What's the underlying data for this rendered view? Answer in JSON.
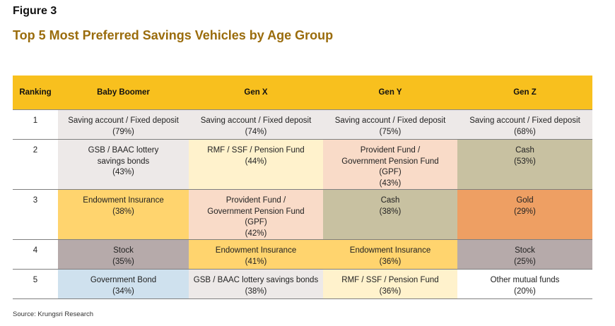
{
  "figure_label": "Figure 3",
  "title": "Top 5 Most Preferred Savings Vehicles by Age Group",
  "table": {
    "headers": [
      "Ranking",
      "Baby Boomer",
      "Gen X",
      "Gen Y",
      "Gen Z"
    ],
    "rows": [
      {
        "rank": "1",
        "cells": [
          {
            "name": "Saving account / Fixed deposit",
            "pct": "(79%)",
            "color": "#ede9e8"
          },
          {
            "name": "Saving account / Fixed deposit",
            "pct": "(74%)",
            "color": "#ede9e8"
          },
          {
            "name": "Saving account / Fixed deposit",
            "pct": "(75%)",
            "color": "#ede9e8"
          },
          {
            "name": "Saving account / Fixed deposit",
            "pct": "(68%)",
            "color": "#ede9e8"
          }
        ]
      },
      {
        "rank": "2",
        "cells": [
          {
            "name": "GSB / BAAC lottery savings bonds",
            "pct": "(43%)",
            "color": "#ede9e8"
          },
          {
            "name": "RMF / SSF / Pension Fund",
            "pct": "(44%)",
            "color": "#fff2cc"
          },
          {
            "name": "Provident Fund / Government Pension Fund (GPF)",
            "pct": "(43%)",
            "color": "#f9dbc8"
          },
          {
            "name": "Cash",
            "pct": "(53%)",
            "color": "#c8c1a1"
          }
        ]
      },
      {
        "rank": "3",
        "cells": [
          {
            "name": "Endowment Insurance",
            "pct": "(38%)",
            "color": "#ffd46e"
          },
          {
            "name": "Provident Fund / Government Pension Fund (GPF)",
            "pct": "(42%)",
            "color": "#f9dbc8"
          },
          {
            "name": "Cash",
            "pct": "(38%)",
            "color": "#c8c1a1"
          },
          {
            "name": "Gold",
            "pct": "(29%)",
            "color": "#ee9f63"
          }
        ]
      },
      {
        "rank": "4",
        "cells": [
          {
            "name": "Stock",
            "pct": "(35%)",
            "color": "#b6aaaa"
          },
          {
            "name": "Endowment Insurance",
            "pct": "(41%)",
            "color": "#ffd46e"
          },
          {
            "name": "Endowment Insurance",
            "pct": "(36%)",
            "color": "#ffd46e"
          },
          {
            "name": "Stock",
            "pct": "(25%)",
            "color": "#b6aaaa"
          }
        ]
      },
      {
        "rank": "5",
        "cells": [
          {
            "name": "Government Bond",
            "pct": "(34%)",
            "color": "#cfe1ee"
          },
          {
            "name": "GSB / BAAC lottery savings bonds",
            "pct": "(38%)",
            "color": "#ede9e8"
          },
          {
            "name": "RMF / SSF / Pension Fund",
            "pct": "(36%)",
            "color": "#fff2cc"
          },
          {
            "name": "Other mutual funds",
            "pct": "(20%)",
            "color": "#ffffff"
          }
        ]
      }
    ]
  },
  "source": "Source: Krungsri Research",
  "colors": {
    "header_bg": "#f8c01e",
    "title_text": "#9a6c0c"
  }
}
